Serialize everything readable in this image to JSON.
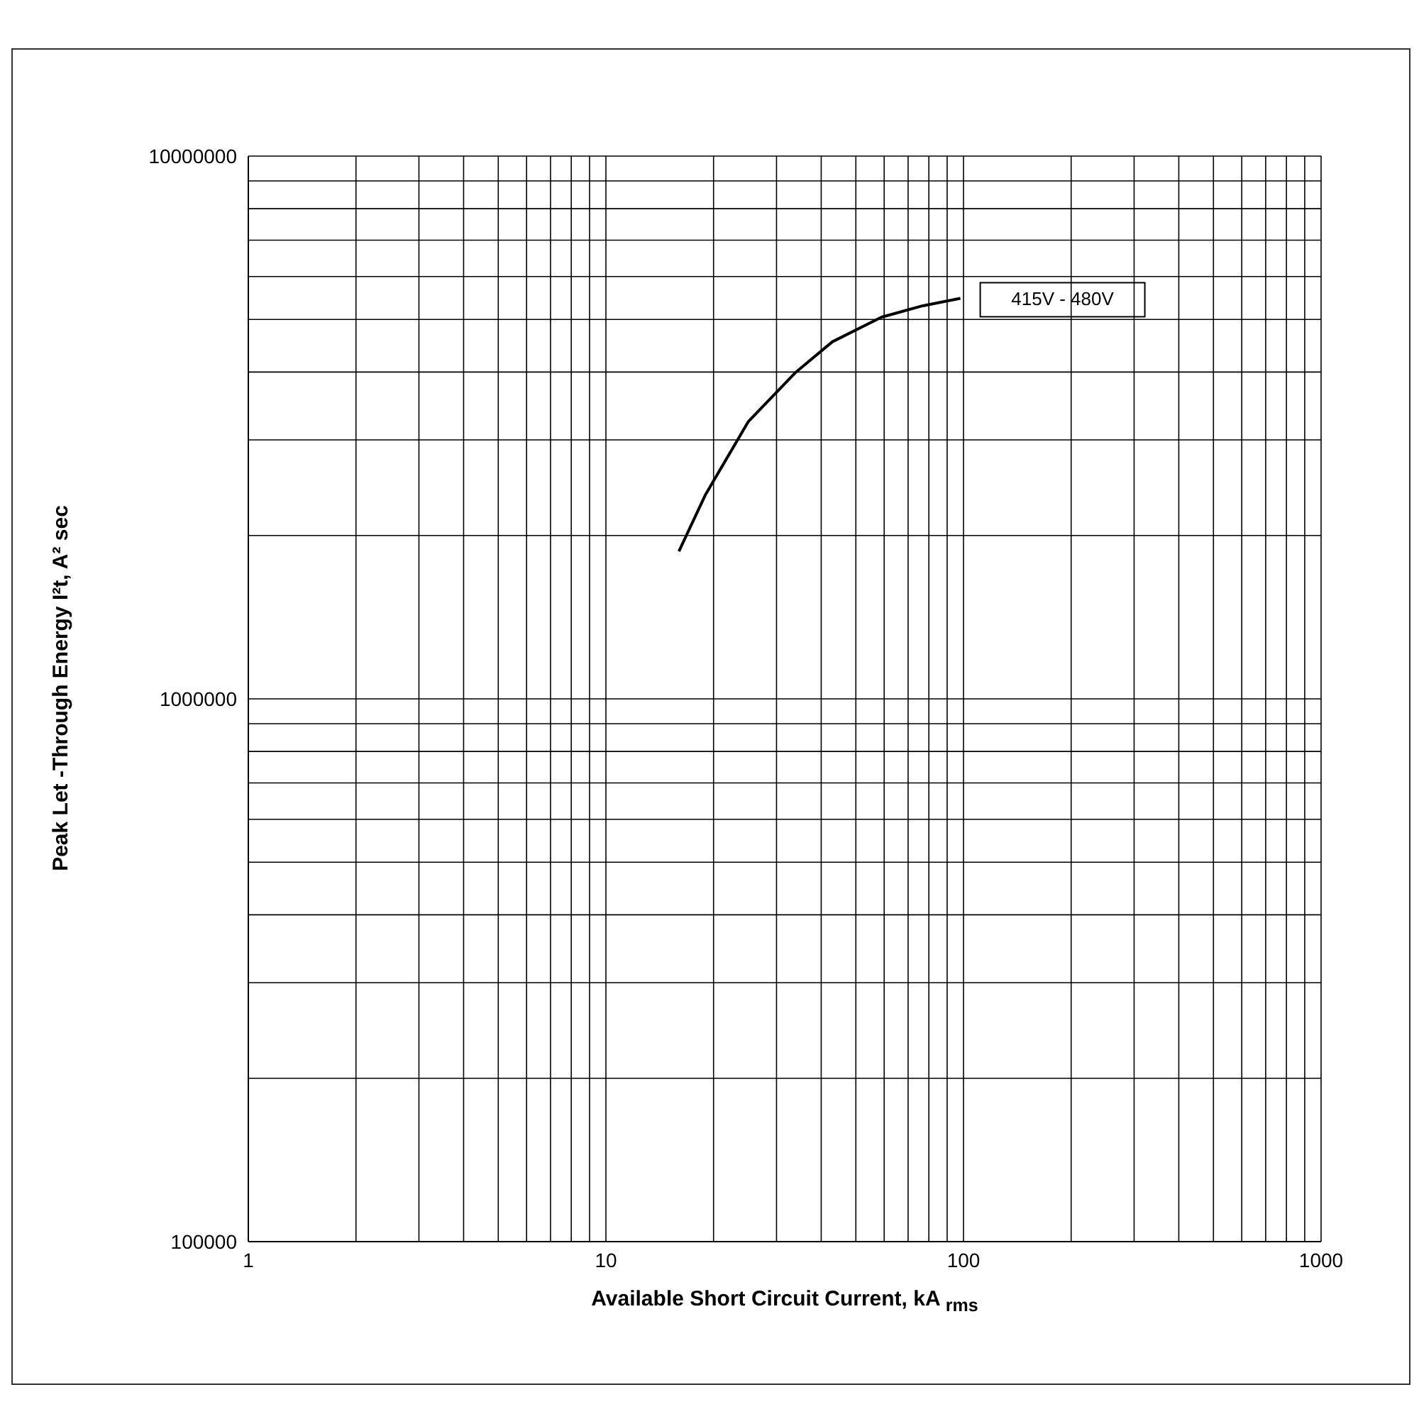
{
  "chart_data": {
    "type": "line",
    "xlabel": "Available Short Circuit Current, kA $_{rms}$",
    "ylabel": "Peak Let -Through Energy I²t, A² sec",
    "log": "xy",
    "grid": true,
    "marker": "none",
    "line_style": "solid",
    "xlim": [
      1,
      1000
    ],
    "xticks": [
      1,
      {
        "value": 2,
        "label": null
      },
      {
        "value": 3,
        "label": null
      },
      {
        "value": 4,
        "label": null
      },
      {
        "value": 5,
        "label": null
      },
      {
        "value": 6,
        "label": null
      },
      {
        "value": 7,
        "label": null
      },
      {
        "value": 8,
        "label": null
      },
      {
        "value": 9,
        "label": null
      },
      10,
      {
        "value": 20,
        "label": null
      },
      {
        "value": 30,
        "label": null
      },
      {
        "value": 40,
        "label": null
      },
      {
        "value": 50,
        "label": null
      },
      {
        "value": 60,
        "label": null
      },
      {
        "value": 70,
        "label": null
      },
      {
        "value": 80,
        "label": null
      },
      {
        "value": 90,
        "label": null
      },
      100,
      {
        "value": 200,
        "label": null
      },
      {
        "value": 300,
        "label": null
      },
      {
        "value": 400,
        "label": null
      },
      {
        "value": 500,
        "label": null
      },
      {
        "value": 600,
        "label": null
      },
      {
        "value": 700,
        "label": null
      },
      {
        "value": 800,
        "label": null
      },
      {
        "value": 900,
        "label": null
      },
      1000
    ],
    "ylim": [
      100000,
      10000000
    ],
    "yticks": [
      100000,
      {
        "value": 200000,
        "label": null
      },
      {
        "value": 300000,
        "label": null
      },
      {
        "value": 400000,
        "label": null
      },
      {
        "value": 500000,
        "label": null
      },
      {
        "value": 600000,
        "label": null
      },
      {
        "value": 700000,
        "label": null
      },
      {
        "value": 800000,
        "label": null
      },
      {
        "value": 900000,
        "label": null
      },
      1000000,
      {
        "value": 2000000,
        "label": null
      },
      {
        "value": 3000000,
        "label": null
      },
      {
        "value": 4000000,
        "label": null
      },
      {
        "value": 5000000,
        "label": null
      },
      {
        "value": 6000000,
        "label": null
      },
      {
        "value": 7000000,
        "label": null
      },
      {
        "value": 8000000,
        "label": null
      },
      {
        "value": 9000000,
        "label": null
      },
      10000000
    ],
    "x": [
      16,
      19,
      25,
      34,
      43,
      59,
      77,
      98
    ],
    "series": [
      {
        "name": "415V - 480V",
        "color": "#000000",
        "values": [
          1870000,
          2380000,
          3240000,
          4000000,
          4550000,
          5050000,
          5300000,
          5470000
        ]
      }
    ]
  }
}
